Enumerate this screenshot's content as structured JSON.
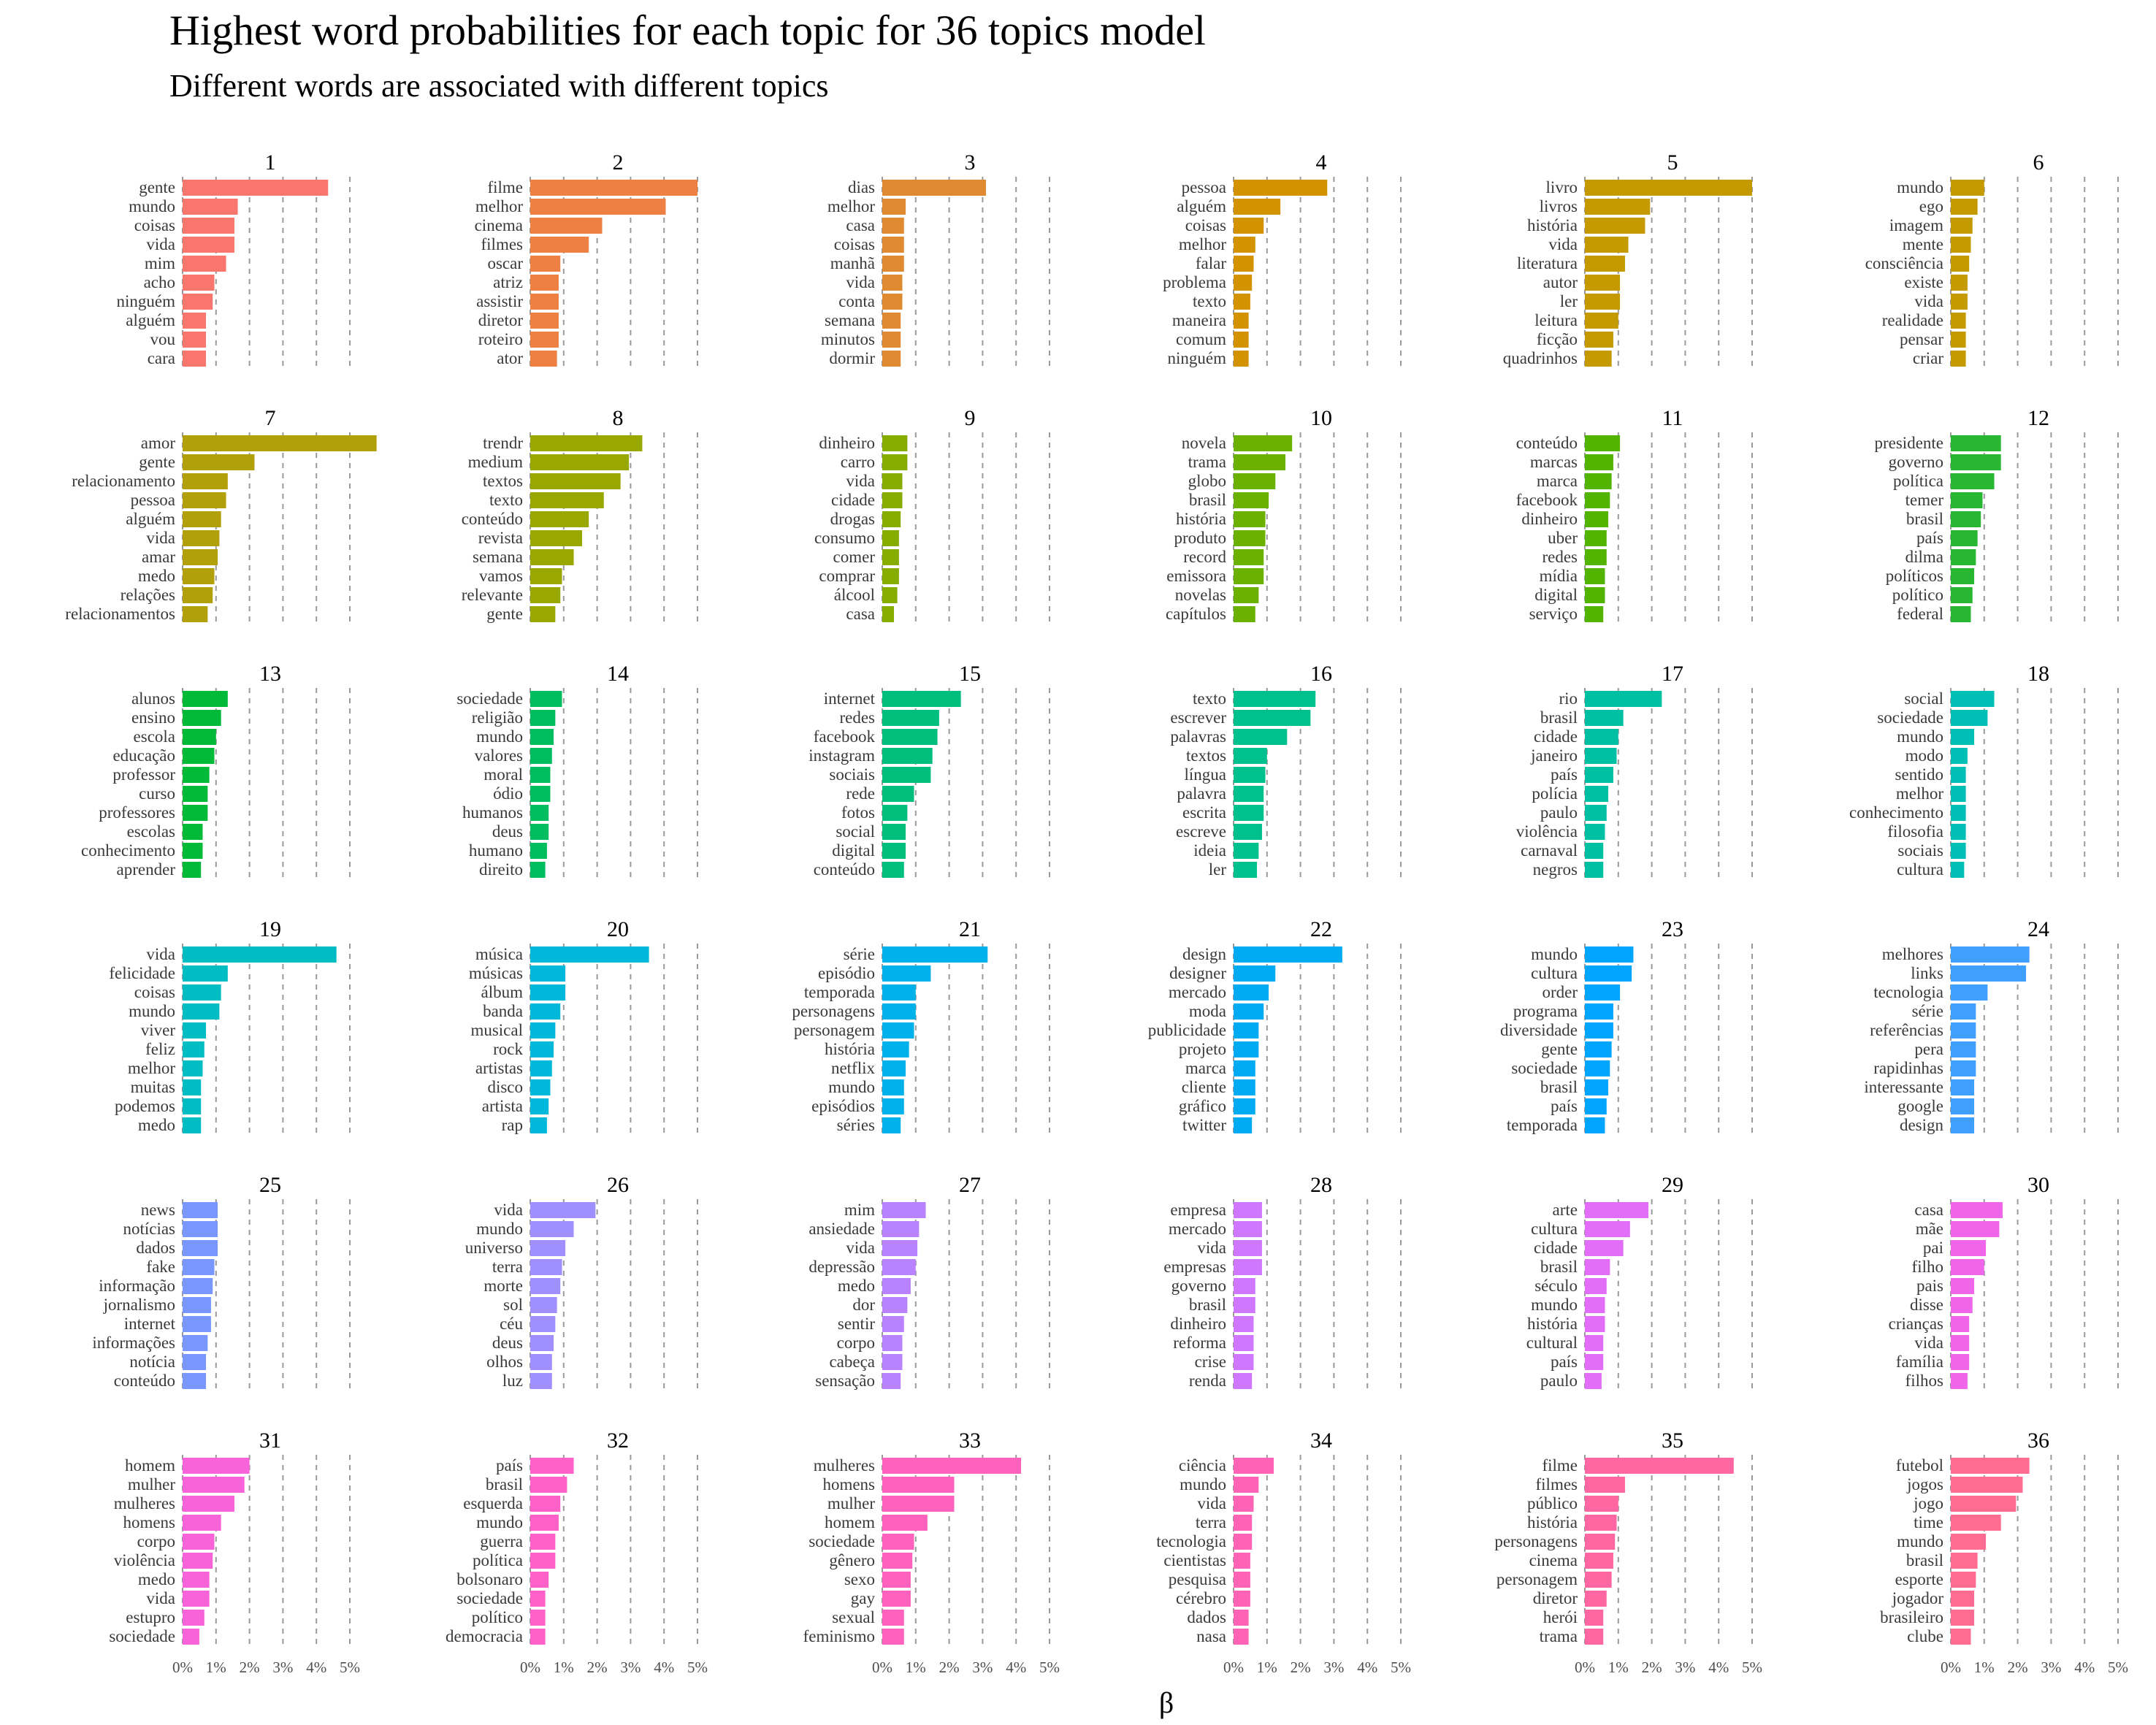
{
  "title": "Highest word probabilities for each topic for 36 topics model",
  "subtitle": "Different words are associated with different topics",
  "chart_data": {
    "type": "bar",
    "orientation": "horizontal",
    "facet_layout": "6x6 grid",
    "xlabel": "β",
    "xlim": [
      0,
      0.055
    ],
    "xticks": [
      0,
      0.01,
      0.02,
      0.03,
      0.04,
      0.05
    ],
    "xtick_labels": [
      "0%",
      "1%",
      "2%",
      "3%",
      "4%",
      "5%"
    ],
    "grid": "vertical dashed",
    "panels": [
      {
        "topic": "1",
        "color": "#F8766D",
        "words": [
          "gente",
          "mundo",
          "coisas",
          "vida",
          "mim",
          "acho",
          "ninguém",
          "alguém",
          "vou",
          "cara"
        ],
        "values": [
          0.0435,
          0.0165,
          0.0155,
          0.0155,
          0.013,
          0.0095,
          0.009,
          0.007,
          0.007,
          0.007
        ]
      },
      {
        "topic": "2",
        "color": "#EE8044",
        "words": [
          "filme",
          "melhor",
          "cinema",
          "filmes",
          "oscar",
          "atriz",
          "assistir",
          "diretor",
          "roteiro",
          "ator"
        ],
        "values": [
          0.05,
          0.0405,
          0.0215,
          0.0175,
          0.009,
          0.0085,
          0.0085,
          0.0085,
          0.0085,
          0.008
        ]
      },
      {
        "topic": "3",
        "color": "#DF8A30",
        "words": [
          "dias",
          "melhor",
          "casa",
          "coisas",
          "manhã",
          "vida",
          "conta",
          "semana",
          "minutos",
          "dormir"
        ],
        "values": [
          0.031,
          0.007,
          0.0065,
          0.0065,
          0.0065,
          0.006,
          0.006,
          0.0055,
          0.0055,
          0.0055
        ]
      },
      {
        "topic": "4",
        "color": "#D39200",
        "words": [
          "pessoa",
          "alguém",
          "coisas",
          "melhor",
          "falar",
          "problema",
          "texto",
          "maneira",
          "comum",
          "ninguém"
        ],
        "values": [
          0.028,
          0.014,
          0.009,
          0.0065,
          0.006,
          0.0055,
          0.005,
          0.0045,
          0.0045,
          0.0045
        ]
      },
      {
        "topic": "5",
        "color": "#C49A00",
        "words": [
          "livro",
          "livros",
          "história",
          "vida",
          "literatura",
          "autor",
          "ler",
          "leitura",
          "ficção",
          "quadrinhos"
        ],
        "values": [
          0.05,
          0.0195,
          0.018,
          0.013,
          0.012,
          0.0105,
          0.0105,
          0.01,
          0.0085,
          0.008
        ]
      },
      {
        "topic": "6",
        "color": "#C49A00",
        "words": [
          "mundo",
          "ego",
          "imagem",
          "mente",
          "consciência",
          "existe",
          "vida",
          "realidade",
          "pensar",
          "criar"
        ],
        "values": [
          0.01,
          0.008,
          0.0065,
          0.006,
          0.0055,
          0.005,
          0.005,
          0.0045,
          0.0045,
          0.0045
        ]
      },
      {
        "topic": "7",
        "color": "#B2A00B",
        "words": [
          "amor",
          "gente",
          "relacionamento",
          "pessoa",
          "alguém",
          "vida",
          "amar",
          "medo",
          "relações",
          "relacionamentos"
        ],
        "values": [
          0.058,
          0.0215,
          0.0135,
          0.013,
          0.0115,
          0.011,
          0.0105,
          0.0095,
          0.009,
          0.0075
        ]
      },
      {
        "topic": "8",
        "color": "#99A800",
        "words": [
          "trendr",
          "medium",
          "textos",
          "texto",
          "conteúdo",
          "revista",
          "semana",
          "vamos",
          "relevante",
          "gente"
        ],
        "values": [
          0.0335,
          0.0295,
          0.027,
          0.022,
          0.0175,
          0.0155,
          0.013,
          0.0095,
          0.009,
          0.0075
        ]
      },
      {
        "topic": "9",
        "color": "#86AC00",
        "words": [
          "dinheiro",
          "carro",
          "vida",
          "cidade",
          "drogas",
          "consumo",
          "comer",
          "comprar",
          "álcool",
          "casa"
        ],
        "values": [
          0.0075,
          0.0075,
          0.006,
          0.006,
          0.0055,
          0.005,
          0.005,
          0.005,
          0.0045,
          0.0035
        ]
      },
      {
        "topic": "10",
        "color": "#6BB100",
        "words": [
          "novela",
          "trama",
          "globo",
          "brasil",
          "história",
          "produto",
          "record",
          "emissora",
          "novelas",
          "capítulos"
        ],
        "values": [
          0.0175,
          0.0155,
          0.0125,
          0.0105,
          0.0095,
          0.0095,
          0.009,
          0.009,
          0.0075,
          0.0065
        ]
      },
      {
        "topic": "11",
        "color": "#53B400",
        "words": [
          "conteúdo",
          "marcas",
          "marca",
          "facebook",
          "dinheiro",
          "uber",
          "redes",
          "mídia",
          "digital",
          "serviço"
        ],
        "values": [
          0.0105,
          0.0085,
          0.008,
          0.0075,
          0.007,
          0.0065,
          0.0065,
          0.006,
          0.006,
          0.0055
        ]
      },
      {
        "topic": "12",
        "color": "#29B631",
        "words": [
          "presidente",
          "governo",
          "política",
          "temer",
          "brasil",
          "país",
          "dilma",
          "políticos",
          "político",
          "federal"
        ],
        "values": [
          0.015,
          0.015,
          0.013,
          0.0095,
          0.009,
          0.008,
          0.0075,
          0.007,
          0.0065,
          0.006
        ]
      },
      {
        "topic": "13",
        "color": "#00BA38",
        "words": [
          "alunos",
          "ensino",
          "escola",
          "educação",
          "professor",
          "curso",
          "professores",
          "escolas",
          "conhecimento",
          "aprender"
        ],
        "values": [
          0.0135,
          0.0115,
          0.01,
          0.0095,
          0.008,
          0.0075,
          0.0075,
          0.006,
          0.006,
          0.0055
        ]
      },
      {
        "topic": "14",
        "color": "#00BD5F",
        "words": [
          "sociedade",
          "religião",
          "mundo",
          "valores",
          "moral",
          "ódio",
          "humanos",
          "deus",
          "humano",
          "direito"
        ],
        "values": [
          0.0095,
          0.0075,
          0.007,
          0.0065,
          0.006,
          0.006,
          0.0055,
          0.0055,
          0.005,
          0.0045
        ]
      },
      {
        "topic": "15",
        "color": "#00BF7D",
        "words": [
          "internet",
          "redes",
          "facebook",
          "instagram",
          "sociais",
          "rede",
          "fotos",
          "social",
          "digital",
          "conteúdo"
        ],
        "values": [
          0.0235,
          0.017,
          0.0165,
          0.015,
          0.0145,
          0.0095,
          0.0075,
          0.007,
          0.007,
          0.0065
        ]
      },
      {
        "topic": "16",
        "color": "#00C08D",
        "words": [
          "texto",
          "escrever",
          "palavras",
          "textos",
          "língua",
          "palavra",
          "escrita",
          "escreve",
          "ideia",
          "ler"
        ],
        "values": [
          0.0245,
          0.023,
          0.016,
          0.01,
          0.0095,
          0.009,
          0.009,
          0.0085,
          0.0075,
          0.007
        ]
      },
      {
        "topic": "17",
        "color": "#00C0A3",
        "words": [
          "rio",
          "brasil",
          "cidade",
          "janeiro",
          "país",
          "polícia",
          "paulo",
          "violência",
          "carnaval",
          "negros"
        ],
        "values": [
          0.023,
          0.0115,
          0.01,
          0.0095,
          0.0085,
          0.007,
          0.0065,
          0.006,
          0.0055,
          0.0055
        ]
      },
      {
        "topic": "18",
        "color": "#00BFB5",
        "words": [
          "social",
          "sociedade",
          "mundo",
          "modo",
          "sentido",
          "melhor",
          "conhecimento",
          "filosofia",
          "sociais",
          "cultura"
        ],
        "values": [
          0.013,
          0.011,
          0.007,
          0.005,
          0.0045,
          0.0045,
          0.0045,
          0.0045,
          0.0045,
          0.004
        ]
      },
      {
        "topic": "19",
        "color": "#00BDC4",
        "words": [
          "vida",
          "felicidade",
          "coisas",
          "mundo",
          "viver",
          "feliz",
          "melhor",
          "muitas",
          "podemos",
          "medo"
        ],
        "values": [
          0.046,
          0.0135,
          0.0115,
          0.011,
          0.007,
          0.0065,
          0.006,
          0.0055,
          0.0055,
          0.0055
        ]
      },
      {
        "topic": "20",
        "color": "#00B8D9",
        "words": [
          "música",
          "músicas",
          "álbum",
          "banda",
          "musical",
          "rock",
          "artistas",
          "disco",
          "artista",
          "rap"
        ],
        "values": [
          0.0355,
          0.0105,
          0.0105,
          0.009,
          0.0075,
          0.007,
          0.0065,
          0.006,
          0.0055,
          0.005
        ]
      },
      {
        "topic": "21",
        "color": "#00B2E9",
        "words": [
          "série",
          "episódio",
          "temporada",
          "personagens",
          "personagem",
          "história",
          "netflix",
          "mundo",
          "episódios",
          "séries"
        ],
        "values": [
          0.0315,
          0.0145,
          0.01,
          0.01,
          0.0095,
          0.008,
          0.007,
          0.0065,
          0.0065,
          0.0055
        ]
      },
      {
        "topic": "22",
        "color": "#00ABF3",
        "words": [
          "design",
          "designer",
          "mercado",
          "moda",
          "publicidade",
          "projeto",
          "marca",
          "cliente",
          "gráfico",
          "twitter"
        ],
        "values": [
          0.0325,
          0.0125,
          0.0105,
          0.009,
          0.0075,
          0.0075,
          0.0065,
          0.0065,
          0.0065,
          0.0055
        ]
      },
      {
        "topic": "23",
        "color": "#00A5FF",
        "words": [
          "mundo",
          "cultura",
          "order",
          "programa",
          "diversidade",
          "gente",
          "sociedade",
          "brasil",
          "país",
          "temporada"
        ],
        "values": [
          0.0145,
          0.014,
          0.0105,
          0.0085,
          0.0085,
          0.008,
          0.0075,
          0.007,
          0.0065,
          0.006
        ]
      },
      {
        "topic": "24",
        "color": "#3F9FFF",
        "words": [
          "melhores",
          "links",
          "tecnologia",
          "série",
          "referências",
          "pera",
          "rapidinhas",
          "interessante",
          "google",
          "design"
        ],
        "values": [
          0.0235,
          0.0225,
          0.011,
          0.0075,
          0.0075,
          0.0075,
          0.0075,
          0.007,
          0.007,
          0.007
        ]
      },
      {
        "topic": "25",
        "color": "#7997FF",
        "words": [
          "news",
          "notícias",
          "dados",
          "fake",
          "informação",
          "jornalismo",
          "internet",
          "informações",
          "notícia",
          "conteúdo"
        ],
        "values": [
          0.0105,
          0.0105,
          0.0105,
          0.0095,
          0.009,
          0.0085,
          0.0085,
          0.0075,
          0.007,
          0.007
        ]
      },
      {
        "topic": "26",
        "color": "#9F8FFF",
        "words": [
          "vida",
          "mundo",
          "universo",
          "terra",
          "morte",
          "sol",
          "céu",
          "deus",
          "olhos",
          "luz"
        ],
        "values": [
          0.0195,
          0.013,
          0.0105,
          0.0095,
          0.009,
          0.008,
          0.0075,
          0.007,
          0.0065,
          0.0065
        ]
      },
      {
        "topic": "27",
        "color": "#B983FF",
        "words": [
          "mim",
          "ansiedade",
          "vida",
          "depressão",
          "medo",
          "dor",
          "sentir",
          "corpo",
          "cabeça",
          "sensação"
        ],
        "values": [
          0.013,
          0.011,
          0.0105,
          0.01,
          0.0085,
          0.0075,
          0.0065,
          0.006,
          0.006,
          0.0055
        ]
      },
      {
        "topic": "28",
        "color": "#CF78FF",
        "words": [
          "empresa",
          "mercado",
          "vida",
          "empresas",
          "governo",
          "brasil",
          "dinheiro",
          "reforma",
          "crise",
          "renda"
        ],
        "values": [
          0.0085,
          0.0085,
          0.0085,
          0.0085,
          0.0065,
          0.0065,
          0.006,
          0.006,
          0.006,
          0.0055
        ]
      },
      {
        "topic": "29",
        "color": "#E26EF7",
        "words": [
          "arte",
          "cultura",
          "cidade",
          "brasil",
          "século",
          "mundo",
          "história",
          "cultural",
          "país",
          "paulo"
        ],
        "values": [
          0.019,
          0.0135,
          0.0115,
          0.0075,
          0.0065,
          0.006,
          0.006,
          0.0055,
          0.0055,
          0.005
        ]
      },
      {
        "topic": "30",
        "color": "#F066EA",
        "words": [
          "casa",
          "mãe",
          "pai",
          "filho",
          "pais",
          "disse",
          "crianças",
          "vida",
          "família",
          "filhos"
        ],
        "values": [
          0.0155,
          0.0145,
          0.0105,
          0.01,
          0.007,
          0.0065,
          0.0055,
          0.0055,
          0.0055,
          0.005
        ]
      },
      {
        "topic": "31",
        "color": "#F963DA",
        "words": [
          "homem",
          "mulher",
          "mulheres",
          "homens",
          "corpo",
          "violência",
          "medo",
          "vida",
          "estupro",
          "sociedade"
        ],
        "values": [
          0.02,
          0.0185,
          0.0155,
          0.0115,
          0.0095,
          0.009,
          0.008,
          0.008,
          0.0065,
          0.005
        ]
      },
      {
        "topic": "32",
        "color": "#FF61C9",
        "words": [
          "país",
          "brasil",
          "esquerda",
          "mundo",
          "guerra",
          "política",
          "bolsonaro",
          "sociedade",
          "político",
          "democracia"
        ],
        "values": [
          0.013,
          0.011,
          0.009,
          0.0085,
          0.0075,
          0.0075,
          0.0055,
          0.0045,
          0.0045,
          0.0045
        ]
      },
      {
        "topic": "33",
        "color": "#FF62BC",
        "words": [
          "mulheres",
          "homens",
          "mulher",
          "homem",
          "sociedade",
          "gênero",
          "sexo",
          "gay",
          "sexual",
          "feminismo"
        ],
        "values": [
          0.0415,
          0.0215,
          0.0215,
          0.0135,
          0.0095,
          0.009,
          0.0085,
          0.0085,
          0.0065,
          0.0065
        ]
      },
      {
        "topic": "34",
        "color": "#FF63B6",
        "words": [
          "ciência",
          "mundo",
          "vida",
          "terra",
          "tecnologia",
          "cientistas",
          "pesquisa",
          "cérebro",
          "dados",
          "nasa"
        ],
        "values": [
          0.012,
          0.0075,
          0.006,
          0.0055,
          0.0055,
          0.005,
          0.005,
          0.005,
          0.0045,
          0.0045
        ]
      },
      {
        "topic": "35",
        "color": "#FF67A3",
        "words": [
          "filme",
          "filmes",
          "público",
          "história",
          "personagens",
          "cinema",
          "personagem",
          "diretor",
          "herói",
          "trama"
        ],
        "values": [
          0.0445,
          0.012,
          0.01,
          0.0095,
          0.009,
          0.0085,
          0.008,
          0.0065,
          0.0055,
          0.0055
        ]
      },
      {
        "topic": "36",
        "color": "#FF6C91",
        "words": [
          "futebol",
          "jogos",
          "jogo",
          "time",
          "mundo",
          "brasil",
          "esporte",
          "jogador",
          "brasileiro",
          "clube"
        ],
        "values": [
          0.0235,
          0.0215,
          0.0195,
          0.015,
          0.0105,
          0.008,
          0.0075,
          0.007,
          0.007,
          0.006
        ]
      }
    ]
  }
}
